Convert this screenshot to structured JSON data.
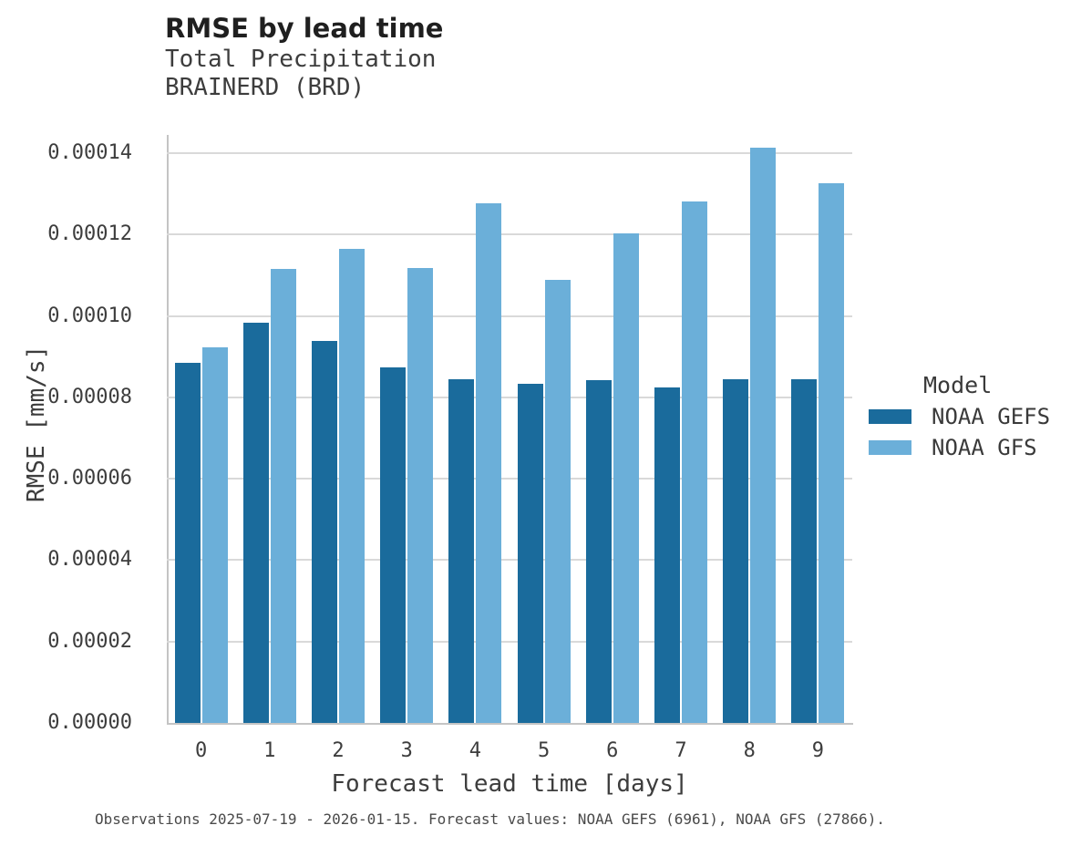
{
  "header": {
    "title": "RMSE by lead time",
    "subtitle_line1": "Total Precipitation",
    "subtitle_line2": "BRAINERD (BRD)"
  },
  "chart_data": {
    "type": "bar",
    "title": "RMSE by lead time",
    "subtitle": [
      "Total Precipitation",
      "BRAINERD (BRD)"
    ],
    "categories": [
      "0",
      "1",
      "2",
      "3",
      "4",
      "5",
      "6",
      "7",
      "8",
      "9"
    ],
    "series": [
      {
        "name": "NOAA GEFS",
        "color": "#1A6B9C",
        "values": [
          8.85e-05,
          9.83e-05,
          9.38e-05,
          8.73e-05,
          8.45e-05,
          8.33e-05,
          8.43e-05,
          8.25e-05,
          8.44e-05,
          8.44e-05
        ]
      },
      {
        "name": "NOAA GFS",
        "color": "#6BAFD9",
        "values": [
          9.22e-05,
          0.0001115,
          0.0001166,
          0.0001118,
          0.0001277,
          0.0001088,
          0.0001203,
          0.0001281,
          0.0001413,
          0.0001327
        ]
      }
    ],
    "xlabel": "Forecast lead time [days]",
    "ylabel": "RMSE [mm/s]",
    "ylim": [
      0,
      0.0001445
    ],
    "ytick_step": 2e-05,
    "ytick_labels": [
      "0.00000",
      "0.00002",
      "0.00004",
      "0.00006",
      "0.00008",
      "0.00010",
      "0.00012",
      "0.00014"
    ],
    "grid": true,
    "legend_title": "Model",
    "legend_position": "right"
  },
  "legend": {
    "title": "Model",
    "entries": [
      {
        "label": "NOAA GEFS",
        "color": "#1A6B9C"
      },
      {
        "label": "NOAA GFS",
        "color": "#6BAFD9"
      }
    ]
  },
  "footer": {
    "caption": "Observations 2025-07-19 - 2026-01-15. Forecast values: NOAA GEFS (6961), NOAA GFS (27866)."
  },
  "colors": {
    "series_dark": "#1A6B9C",
    "series_light": "#6BAFD9",
    "gridline": "#d9d9d9",
    "axis_spine": "#c4c4c4",
    "title_text": "#1f1f1f",
    "label_text": "#3d3d3d",
    "background": "#ffffff"
  }
}
